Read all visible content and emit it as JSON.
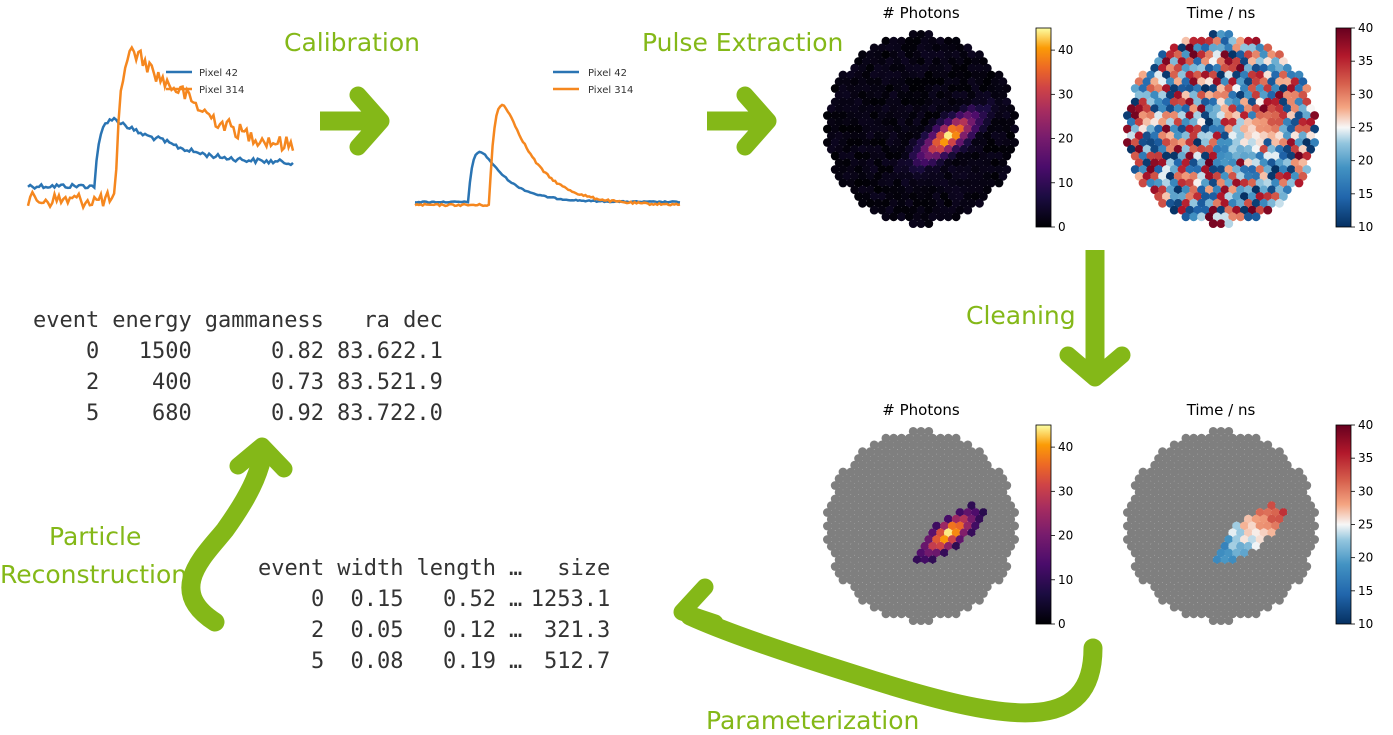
{
  "steps": {
    "calibration": "Calibration",
    "pulse_extraction": "Pulse Extraction",
    "cleaning": "Cleaning",
    "parameterization": "Parameterization",
    "particle_reconstruction_line1": "Particle",
    "particle_reconstruction_line2": "Reconstruction"
  },
  "waveforms": {
    "legend": [
      "Pixel 42",
      "Pixel 314"
    ],
    "colors": [
      "#2a74b3",
      "#f5871f"
    ]
  },
  "camera_panels": {
    "raw_photons_title": "# Photons",
    "raw_time_title": "Time / ns",
    "clean_photons_title": "# Photons",
    "clean_time_title": "Time / ns",
    "photons_ticks": [
      "0",
      "10",
      "20",
      "30",
      "40"
    ],
    "photons_range": [
      0,
      45
    ],
    "time_ticks": [
      "10",
      "15",
      "20",
      "25",
      "30",
      "35",
      "40"
    ],
    "time_range": [
      10,
      40
    ],
    "masked_color": "#7f7f7f"
  },
  "reco_table": {
    "columns": [
      "event",
      "energy",
      "gammaness",
      "ra",
      "dec"
    ],
    "rows": [
      [
        "0",
        "1500",
        "0.82",
        "83.6",
        "22.1"
      ],
      [
        "2",
        "400",
        "0.73",
        "83.5",
        "21.9"
      ],
      [
        "5",
        "680",
        "0.92",
        "83.7",
        "22.0"
      ]
    ]
  },
  "param_table": {
    "columns": [
      "event",
      "width",
      "length",
      "…",
      "size"
    ],
    "rows": [
      [
        "0",
        "0.15",
        "0.52",
        "…",
        "1253.1"
      ],
      [
        "2",
        "0.05",
        "0.12",
        "…",
        "321.3"
      ],
      [
        "5",
        "0.08",
        "0.19",
        "…",
        "512.7"
      ]
    ]
  },
  "arrow_color": "#84b818"
}
